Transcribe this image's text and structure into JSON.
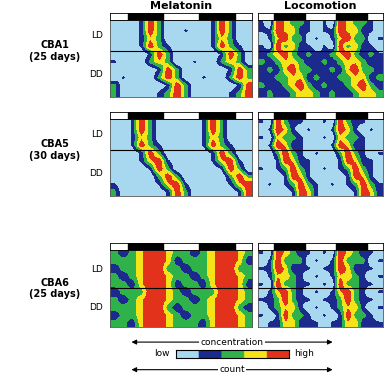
{
  "chart_data": {
    "type": "heatmap",
    "columns": [
      "Melatonin",
      "Locomotion"
    ],
    "xlim": [
      0,
      48
    ],
    "dark_phases": [
      [
        6,
        18
      ],
      [
        30,
        42
      ]
    ],
    "tick_labels": false,
    "colors": [
      "#a8d8f0",
      "#1c2a8e",
      "#2fb24a",
      "#f5e31a",
      "#e2321c"
    ],
    "colorbar": {
      "range": [
        0,
        4
      ],
      "min_label": "low",
      "max_label": "high",
      "top_label": "concentration",
      "bottom_label": "count"
    },
    "rows": [
      {
        "name": "CBA1",
        "days": "(25 days)",
        "phases": [
          "LD",
          "DD"
        ],
        "dd_start_row": 4,
        "cells": {
          "Melatonin": [
            [
              0,
              0,
              0,
              1,
              4,
              2,
              0,
              0,
              0,
              0,
              0,
              1,
              4,
              2,
              0,
              0
            ],
            [
              0,
              0,
              0,
              1,
              4,
              2,
              0,
              0,
              1,
              0,
              0,
              1,
              4,
              2,
              0,
              0
            ],
            [
              0,
              0,
              0,
              1,
              3,
              2,
              0,
              0,
              0,
              0,
              0,
              1,
              3,
              2,
              0,
              0
            ],
            [
              0,
              0,
              0,
              1,
              4,
              2,
              1,
              0,
              0,
              0,
              0,
              1,
              4,
              2,
              1,
              0
            ],
            [
              0,
              0,
              0,
              0,
              1,
              4,
              2,
              0,
              0,
              0,
              0,
              0,
              1,
              4,
              2,
              0
            ],
            [
              1,
              0,
              0,
              0,
              2,
              3,
              2,
              0,
              0,
              1,
              0,
              0,
              2,
              3,
              2,
              0
            ],
            [
              0,
              0,
              0,
              0,
              0,
              1,
              4,
              2,
              0,
              0,
              0,
              0,
              0,
              1,
              4,
              2
            ],
            [
              0,
              1,
              0,
              0,
              0,
              2,
              4,
              2,
              0,
              0,
              1,
              0,
              0,
              2,
              4,
              2
            ],
            [
              2,
              0,
              0,
              0,
              0,
              0,
              1,
              4,
              2,
              0,
              0,
              0,
              0,
              0,
              1,
              4
            ],
            [
              2,
              0,
              0,
              0,
              0,
              1,
              2,
              4,
              2,
              0,
              0,
              0,
              0,
              1,
              2,
              4
            ]
          ],
          "Locomotion": [
            [
              1,
              0,
              4,
              3,
              2,
              2,
              1,
              0,
              1,
              0,
              4,
              3,
              2,
              2,
              1,
              0
            ],
            [
              1,
              1,
              4,
              3,
              3,
              1,
              1,
              0,
              1,
              1,
              4,
              3,
              3,
              1,
              1,
              0
            ],
            [
              0,
              1,
              3,
              4,
              2,
              2,
              0,
              1,
              0,
              1,
              3,
              4,
              2,
              2,
              0,
              1
            ],
            [
              1,
              0,
              4,
              2,
              3,
              1,
              1,
              0,
              1,
              0,
              4,
              2,
              3,
              1,
              1,
              0
            ],
            [
              1,
              2,
              3,
              4,
              2,
              1,
              2,
              1,
              1,
              2,
              3,
              4,
              2,
              1,
              2,
              1
            ],
            [
              2,
              1,
              2,
              3,
              3,
              2,
              1,
              1,
              2,
              1,
              2,
              3,
              3,
              2,
              1,
              1
            ],
            [
              1,
              2,
              1,
              3,
              4,
              2,
              2,
              1,
              1,
              2,
              1,
              3,
              4,
              2,
              2,
              1
            ],
            [
              1,
              1,
              2,
              2,
              3,
              3,
              1,
              2,
              1,
              1,
              2,
              2,
              3,
              3,
              1,
              2
            ],
            [
              2,
              1,
              1,
              2,
              3,
              4,
              2,
              1,
              2,
              1,
              1,
              2,
              3,
              4,
              2,
              1
            ],
            [
              1,
              2,
              1,
              1,
              2,
              3,
              3,
              2,
              1,
              2,
              1,
              1,
              2,
              3,
              3,
              2
            ]
          ]
        }
      },
      {
        "name": "CBA5",
        "days": "(30 days)",
        "phases": [
          "LD",
          "DD"
        ],
        "dd_start_row": 4,
        "cells": {
          "Melatonin": [
            [
              0,
              0,
              1,
              4,
              2,
              0,
              0,
              0,
              0,
              0,
              1,
              4,
              2,
              0,
              0,
              0
            ],
            [
              0,
              0,
              1,
              4,
              2,
              0,
              0,
              0,
              0,
              0,
              1,
              4,
              2,
              0,
              0,
              0
            ],
            [
              0,
              0,
              1,
              3,
              2,
              0,
              0,
              0,
              0,
              0,
              1,
              3,
              2,
              0,
              0,
              0
            ],
            [
              0,
              0,
              1,
              4,
              2,
              1,
              0,
              0,
              0,
              0,
              1,
              4,
              2,
              1,
              0,
              0
            ],
            [
              0,
              0,
              0,
              1,
              4,
              2,
              0,
              0,
              0,
              0,
              0,
              1,
              4,
              2,
              0,
              0
            ],
            [
              0,
              0,
              0,
              1,
              3,
              4,
              1,
              0,
              0,
              0,
              0,
              1,
              3,
              4,
              1,
              0
            ],
            [
              0,
              0,
              0,
              0,
              1,
              4,
              2,
              0,
              0,
              0,
              0,
              0,
              1,
              4,
              2,
              0
            ],
            [
              0,
              0,
              0,
              0,
              0,
              2,
              4,
              2,
              0,
              0,
              0,
              0,
              0,
              2,
              4,
              2
            ],
            [
              1,
              0,
              0,
              0,
              0,
              1,
              3,
              4,
              1,
              0,
              0,
              0,
              0,
              1,
              3,
              4
            ],
            [
              2,
              0,
              0,
              0,
              0,
              0,
              1,
              4,
              2,
              0,
              0,
              0,
              0,
              0,
              1,
              4
            ]
          ],
          "Locomotion": [
            [
              1,
              0,
              4,
              2,
              1,
              1,
              0,
              0,
              1,
              0,
              4,
              2,
              1,
              1,
              0,
              0
            ],
            [
              0,
              1,
              4,
              3,
              1,
              0,
              1,
              0,
              0,
              1,
              4,
              3,
              1,
              0,
              1,
              0
            ],
            [
              1,
              0,
              3,
              2,
              2,
              1,
              0,
              0,
              1,
              0,
              3,
              2,
              2,
              1,
              0,
              0
            ],
            [
              0,
              1,
              4,
              3,
              1,
              1,
              0,
              0,
              0,
              1,
              4,
              3,
              1,
              1,
              0,
              0
            ],
            [
              0,
              0,
              2,
              4,
              2,
              1,
              0,
              1,
              0,
              0,
              2,
              4,
              2,
              1,
              0,
              1
            ],
            [
              0,
              0,
              1,
              4,
              3,
              1,
              1,
              0,
              0,
              0,
              1,
              4,
              3,
              1,
              1,
              0
            ],
            [
              1,
              0,
              1,
              2,
              4,
              2,
              1,
              0,
              1,
              0,
              1,
              2,
              4,
              2,
              1,
              0
            ],
            [
              0,
              0,
              0,
              1,
              4,
              3,
              1,
              0,
              0,
              0,
              0,
              1,
              4,
              3,
              1,
              0
            ],
            [
              0,
              1,
              0,
              1,
              2,
              4,
              2,
              1,
              0,
              1,
              0,
              1,
              2,
              4,
              2,
              1
            ],
            [
              0,
              0,
              0,
              0,
              1,
              4,
              3,
              1,
              0,
              0,
              0,
              0,
              1,
              4,
              3,
              1
            ]
          ]
        }
      },
      {
        "name": "CBA6",
        "days": "(25 days)",
        "phases": [
          "LD",
          "DD"
        ],
        "dd_start_row": 5,
        "cells": {
          "Melatonin": [
            [
              2,
              1,
              2,
              3,
              4,
              4,
              3,
              2,
              2,
              1,
              2,
              3,
              4,
              4,
              3,
              2
            ],
            [
              2,
              2,
              2,
              3,
              4,
              4,
              3,
              1,
              2,
              2,
              2,
              3,
              4,
              4,
              3,
              1
            ],
            [
              1,
              2,
              2,
              3,
              4,
              4,
              2,
              2,
              1,
              2,
              2,
              3,
              4,
              4,
              2,
              2
            ],
            [
              2,
              1,
              2,
              3,
              4,
              4,
              3,
              2,
              2,
              1,
              2,
              3,
              4,
              4,
              3,
              2
            ],
            [
              2,
              2,
              1,
              3,
              4,
              4,
              3,
              1,
              2,
              2,
              1,
              3,
              4,
              4,
              3,
              1
            ],
            [
              1,
              2,
              2,
              2,
              4,
              4,
              3,
              2,
              1,
              2,
              2,
              2,
              4,
              4,
              3,
              2
            ],
            [
              2,
              1,
              2,
              3,
              4,
              4,
              3,
              2,
              2,
              1,
              2,
              3,
              4,
              4,
              3,
              2
            ],
            [
              2,
              2,
              2,
              3,
              4,
              4,
              2,
              1,
              2,
              2,
              2,
              3,
              4,
              4,
              2,
              1
            ],
            [
              1,
              2,
              2,
              3,
              4,
              4,
              3,
              2,
              1,
              2,
              2,
              3,
              4,
              4,
              3,
              2
            ],
            [
              2,
              2,
              1,
              3,
              4,
              4,
              3,
              2,
              2,
              2,
              1,
              3,
              4,
              4,
              3,
              2
            ]
          ],
          "Locomotion": [
            [
              1,
              0,
              4,
              3,
              2,
              1,
              1,
              0,
              1,
              0,
              4,
              3,
              2,
              1,
              1,
              0
            ],
            [
              0,
              1,
              4,
              2,
              2,
              2,
              0,
              1,
              0,
              1,
              4,
              2,
              2,
              2,
              0,
              1
            ],
            [
              1,
              1,
              4,
              3,
              1,
              1,
              1,
              0,
              1,
              1,
              4,
              3,
              1,
              1,
              1,
              0
            ],
            [
              0,
              1,
              3,
              3,
              2,
              1,
              0,
              1,
              0,
              1,
              3,
              3,
              2,
              1,
              0,
              1
            ],
            [
              1,
              0,
              4,
              2,
              2,
              1,
              1,
              0,
              1,
              0,
              4,
              2,
              2,
              1,
              1,
              0
            ],
            [
              0,
              1,
              3,
              4,
              2,
              1,
              0,
              1,
              0,
              1,
              3,
              4,
              2,
              1,
              0,
              1
            ],
            [
              1,
              1,
              2,
              4,
              2,
              1,
              1,
              0,
              1,
              1,
              2,
              4,
              2,
              1,
              1,
              0
            ],
            [
              0,
              1,
              2,
              3,
              3,
              1,
              0,
              1,
              0,
              1,
              2,
              3,
              3,
              1,
              0,
              1
            ],
            [
              1,
              0,
              1,
              4,
              2,
              2,
              1,
              0,
              1,
              0,
              1,
              4,
              2,
              2,
              1,
              0
            ],
            [
              0,
              1,
              1,
              3,
              3,
              1,
              1,
              1,
              0,
              1,
              1,
              3,
              3,
              1,
              1,
              1
            ]
          ]
        }
      }
    ]
  }
}
